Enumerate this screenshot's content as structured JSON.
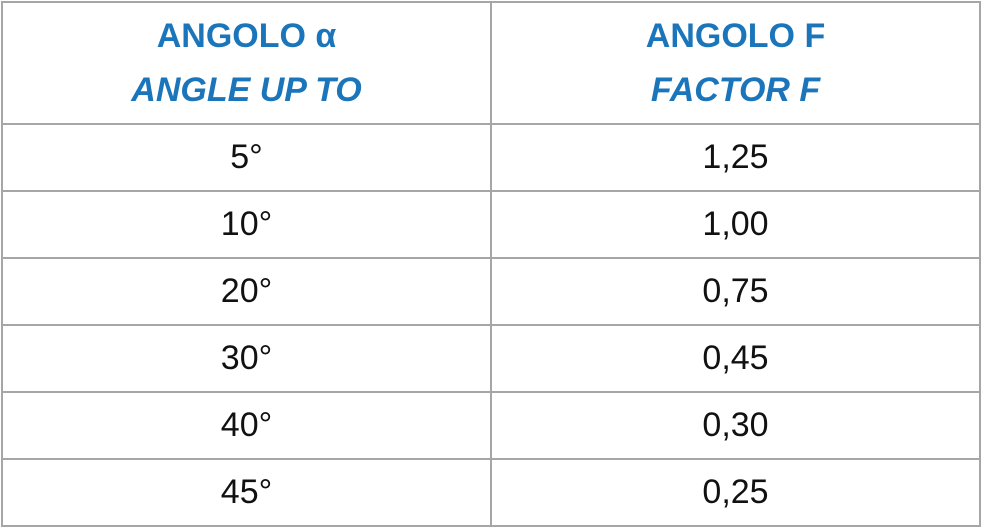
{
  "table": {
    "header": [
      [
        "ANGOLO α",
        "ANGLE UP TO"
      ],
      [
        "ANGOLO F",
        "FACTOR F"
      ]
    ],
    "rows": [
      [
        "5°",
        "1,25"
      ],
      [
        "10°",
        "1,00"
      ],
      [
        "20°",
        "0,75"
      ],
      [
        "30°",
        "0,45"
      ],
      [
        "40°",
        "0,30"
      ],
      [
        "45°",
        "0,25"
      ]
    ]
  }
}
